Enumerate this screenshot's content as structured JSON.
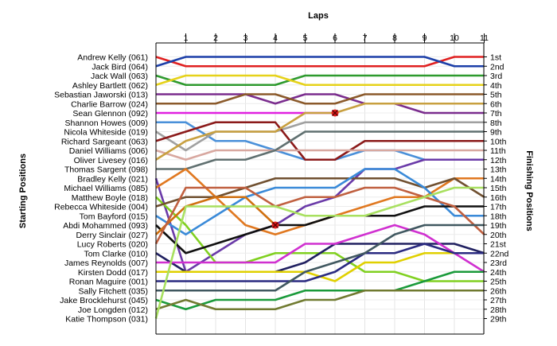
{
  "chart_data": {
    "type": "line",
    "title": "Laps",
    "ylabel_left": "Starting Positions",
    "ylabel_right": "Finishing Positions",
    "laps": [
      1,
      2,
      3,
      4,
      5,
      6,
      7,
      8,
      9,
      10,
      11
    ],
    "finish_labels": [
      "1st",
      "2nd",
      "3rd",
      "4th",
      "5th",
      "6th",
      "7th",
      "8th",
      "9th",
      "10th",
      "11th",
      "12th",
      "13th",
      "14th",
      "15th",
      "16th",
      "17th",
      "18th",
      "19th",
      "20th",
      "21st",
      "22nd",
      "23rd",
      "24th",
      "25th",
      "26th",
      "27th",
      "28th",
      "29th"
    ],
    "drivers": [
      {
        "name": "Andrew Kelly (061)",
        "color": "#e02020",
        "positions": [
          1,
          2,
          2,
          2,
          2,
          2,
          2,
          2,
          2,
          2,
          1,
          1
        ]
      },
      {
        "name": "Jack Bird (064)",
        "color": "#1c3fa8",
        "positions": [
          2,
          1,
          1,
          1,
          1,
          1,
          1,
          1,
          1,
          1,
          2,
          2
        ]
      },
      {
        "name": "Jack Wall (063)",
        "color": "#2e9a2e",
        "positions": [
          3,
          4,
          4,
          4,
          4,
          3,
          3,
          3,
          3,
          3,
          3,
          3
        ]
      },
      {
        "name": "Ashley Bartlett (062)",
        "color": "#e6d21a",
        "positions": [
          4,
          3,
          3,
          3,
          3,
          4,
          4,
          4,
          4,
          4,
          4,
          4
        ]
      },
      {
        "name": "Sebastian Jaworski (013)",
        "color": "#7b2d8e",
        "positions": [
          5,
          5,
          5,
          5,
          6,
          5,
          5,
          6,
          6,
          7,
          7,
          7
        ]
      },
      {
        "name": "Charlie Barrow (024)",
        "color": "#8b5a2b",
        "positions": [
          6,
          6,
          6,
          5,
          5,
          6,
          6,
          5,
          5,
          5,
          5,
          5
        ]
      },
      {
        "name": "Sean Glennon (092)",
        "color": "#e020e0",
        "positions": [
          7,
          7,
          7,
          7,
          7,
          7,
          7
        ],
        "retired": true
      },
      {
        "name": "Shannon Howes (009)",
        "color": "#4a90d9",
        "positions": [
          8,
          8,
          10,
          10,
          11,
          12,
          12,
          11,
          11,
          12,
          12,
          12
        ]
      },
      {
        "name": "Nicola Whiteside (019)",
        "color": "#a0a0a0",
        "positions": [
          9,
          11,
          9,
          9,
          9,
          8,
          8,
          8,
          8,
          8,
          8,
          8
        ]
      },
      {
        "name": "Richard Sargeant (063)",
        "color": "#8b1a1a",
        "positions": [
          10,
          9,
          8,
          8,
          8,
          12,
          12,
          10,
          10,
          10,
          10,
          10
        ]
      },
      {
        "name": "Daniel Williams (006)",
        "color": "#d8a8a0",
        "positions": [
          11,
          12,
          11,
          11,
          11,
          11,
          11,
          11,
          11,
          11,
          11,
          11
        ]
      },
      {
        "name": "Oliver Livesey (016)",
        "color": "#c8a040",
        "positions": [
          12,
          10,
          9,
          9,
          9,
          7,
          7,
          6,
          6,
          6,
          6,
          6
        ]
      },
      {
        "name": "Thomas Sargent (098)",
        "color": "#607070",
        "positions": [
          13,
          13,
          12,
          12,
          11,
          9,
          9,
          9,
          9,
          9,
          9,
          9
        ]
      },
      {
        "name": "Bradley Kelly (021)",
        "color": "#6a3aa8",
        "positions": [
          14,
          24,
          22,
          20,
          19,
          17,
          16,
          13,
          13,
          12,
          12,
          12
        ]
      },
      {
        "name": "Michael Williams (085)",
        "color": "#e07820",
        "positions": [
          15,
          13,
          16,
          19,
          20,
          19,
          18,
          17,
          16,
          16,
          14,
          14
        ]
      },
      {
        "name": "Matthew Boyle (018)",
        "color": "#80d020",
        "positions": [
          16,
          19,
          23,
          23,
          22,
          22,
          22,
          24,
          24,
          25,
          25,
          25
        ]
      },
      {
        "name": "Rebecca Whiteside (004)",
        "color": "#705030",
        "positions": [
          17,
          16,
          16,
          15,
          14,
          14,
          14,
          14,
          14,
          15,
          14,
          16
        ]
      },
      {
        "name": "Tom Bayford (015)",
        "color": "#3a8ad8",
        "positions": [
          18,
          20,
          18,
          16,
          15,
          15,
          15,
          13,
          13,
          15,
          18,
          18
        ]
      },
      {
        "name": "Abdi Mohammed (093)",
        "color": "#101010",
        "positions": [
          19,
          22,
          21,
          20,
          19,
          19,
          18,
          18,
          18,
          17,
          17,
          17
        ]
      },
      {
        "name": "Derry Sinclair (027)",
        "color": "#d07010",
        "positions": [
          20,
          17,
          16,
          16,
          19
        ],
        "retired": true
      },
      {
        "name": "Lucy Roberts (020)",
        "color": "#c06040",
        "positions": [
          21,
          15,
          15,
          15,
          17,
          16,
          16,
          15,
          15,
          16,
          17,
          20
        ]
      },
      {
        "name": "Tom Clarke (010)",
        "color": "#202060",
        "positions": [
          22,
          24,
          24,
          24,
          24,
          23,
          21,
          21,
          21,
          21,
          21,
          22
        ]
      },
      {
        "name": "James Reynolds (007)",
        "color": "#d030d0",
        "positions": [
          23,
          23,
          23,
          23,
          23,
          21,
          21,
          20,
          19,
          20,
          22,
          24
        ]
      },
      {
        "name": "Kirsten Dodd (017)",
        "color": "#e0d000",
        "positions": [
          24,
          24,
          24,
          24,
          24,
          24,
          25,
          23,
          23,
          22,
          22,
          22
        ]
      },
      {
        "name": "Ronan Maguire (001)",
        "color": "#2a2a80",
        "positions": [
          25,
          25,
          25,
          25,
          25,
          25,
          24,
          22,
          22,
          21,
          22,
          22
        ]
      },
      {
        "name": "Sally Fitchett (035)",
        "color": "#405860",
        "positions": [
          26,
          26,
          26,
          26,
          26,
          24,
          23,
          22,
          20,
          19,
          19,
          19
        ]
      },
      {
        "name": "Jake Brocklehurst (045)",
        "color": "#1a9a3a",
        "positions": [
          27,
          28,
          27,
          27,
          27,
          26,
          26,
          26,
          26,
          25,
          24,
          24
        ]
      },
      {
        "name": "Joe Longden (012)",
        "color": "#707a30",
        "positions": [
          28,
          27,
          28,
          28,
          28,
          27,
          27,
          26,
          26,
          26,
          26,
          26
        ]
      },
      {
        "name": "Katie Thompson (031)",
        "color": "#a8e060",
        "positions": [
          29,
          17,
          17,
          17,
          17,
          18,
          18,
          18,
          17,
          16,
          15,
          15
        ]
      }
    ]
  }
}
